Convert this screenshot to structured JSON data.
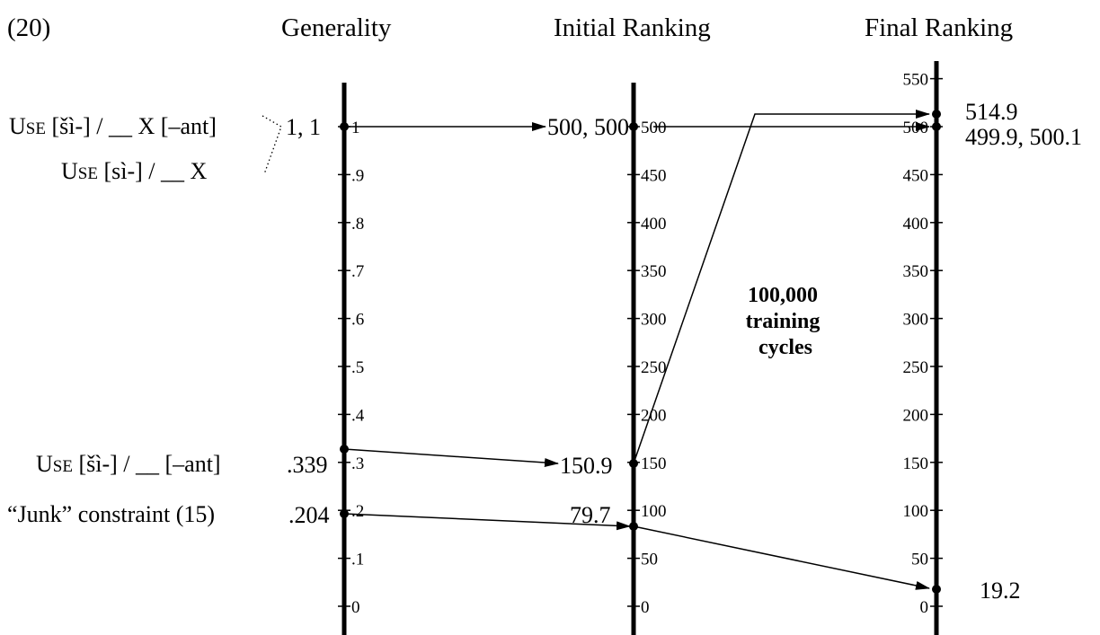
{
  "example_number": "(20)",
  "headers": {
    "generality": "Generality",
    "initial_ranking": "Initial Ranking",
    "final_ranking": "Final Ranking"
  },
  "axes": {
    "generality": {
      "ticks": [
        {
          "value": 1,
          "label": "1"
        },
        {
          "value": 0.9,
          "label": ".9"
        },
        {
          "value": 0.8,
          "label": ".8"
        },
        {
          "value": 0.7,
          "label": ".7"
        },
        {
          "value": 0.6,
          "label": ".6"
        },
        {
          "value": 0.5,
          "label": ".5"
        },
        {
          "value": 0.4,
          "label": ".4"
        },
        {
          "value": 0.3,
          "label": ".3"
        },
        {
          "value": 0.2,
          "label": ".2"
        },
        {
          "value": 0.1,
          "label": ".1"
        },
        {
          "value": 0,
          "label": "0"
        }
      ]
    },
    "initial": {
      "ticks": [
        {
          "value": 500,
          "label": "500"
        },
        {
          "value": 450,
          "label": "450"
        },
        {
          "value": 400,
          "label": "400"
        },
        {
          "value": 350,
          "label": "350"
        },
        {
          "value": 300,
          "label": "300"
        },
        {
          "value": 250,
          "label": "250"
        },
        {
          "value": 200,
          "label": "200"
        },
        {
          "value": 150,
          "label": "150"
        },
        {
          "value": 100,
          "label": "100"
        },
        {
          "value": 50,
          "label": "50"
        },
        {
          "value": 0,
          "label": "0"
        }
      ]
    },
    "final": {
      "ticks": [
        {
          "value": 550,
          "label": "550"
        },
        {
          "value": 500,
          "label": "500"
        },
        {
          "value": 450,
          "label": "450"
        },
        {
          "value": 400,
          "label": "400"
        },
        {
          "value": 350,
          "label": "350"
        },
        {
          "value": 300,
          "label": "300"
        },
        {
          "value": 250,
          "label": "250"
        },
        {
          "value": 200,
          "label": "200"
        },
        {
          "value": 150,
          "label": "150"
        },
        {
          "value": 100,
          "label": "100"
        },
        {
          "value": 50,
          "label": "50"
        },
        {
          "value": 0,
          "label": "0"
        }
      ]
    }
  },
  "constraints": {
    "c1": {
      "prefix": "U",
      "smallcaps": "SE",
      "rest": " [šì-] / __ X [–ant]"
    },
    "c2": {
      "prefix": "U",
      "smallcaps": "SE",
      "rest": " [sì-] / __ X"
    },
    "c3": {
      "prefix": "U",
      "smallcaps": "SE",
      "rest": " [šì-] / __ [–ant]"
    },
    "c4": {
      "label": "“Junk” constraint (15)"
    }
  },
  "values": {
    "gen_pair": "1, 1",
    "gen_c3": ".339",
    "gen_c4": ".204",
    "init_pair": "500, 500",
    "init_c3": "150.9",
    "init_c4": "79.7",
    "final_c1": "514.9",
    "final_pair": "499.9, 500.1",
    "final_c4": "19.2"
  },
  "training_note": [
    "100,000",
    "training",
    "cycles"
  ]
}
